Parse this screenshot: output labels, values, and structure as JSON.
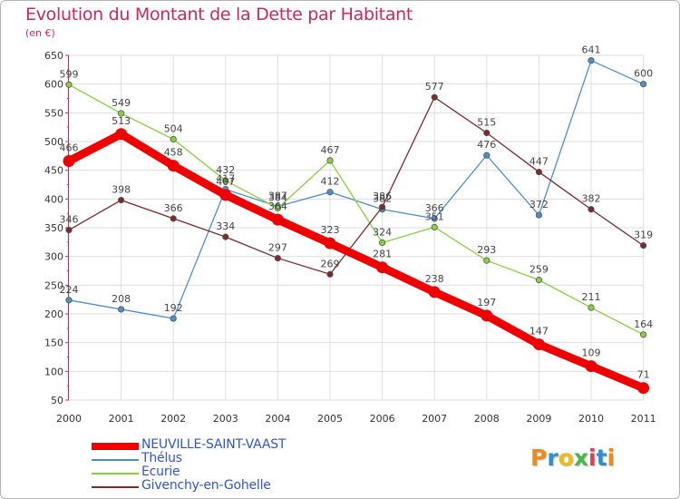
{
  "chart_data": {
    "type": "line",
    "title": "Evolution du Montant de la Dette par Habitant",
    "unit": "(en €)",
    "categories": [
      "2000",
      "2001",
      "2002",
      "2003",
      "2004",
      "2005",
      "2006",
      "2007",
      "2008",
      "2009",
      "2010",
      "2011"
    ],
    "ylim": [
      50,
      650
    ],
    "yticks": [
      50,
      100,
      150,
      200,
      250,
      300,
      350,
      400,
      450,
      500,
      550,
      600,
      650
    ],
    "series": [
      {
        "name": "Thélus",
        "color": "#4f8ec8",
        "values": [
          224,
          208,
          192,
          417,
          387,
          412,
          382,
          366,
          476,
          372,
          641,
          600
        ]
      },
      {
        "name": "Ecurie",
        "color": "#88d040",
        "values": [
          599,
          549,
          504,
          432,
          384,
          467,
          324,
          351,
          293,
          259,
          211,
          164
        ]
      },
      {
        "name": "Givenchy-en-Gohelle",
        "color": "#7a2b2b",
        "values": [
          346,
          398,
          366,
          334,
          297,
          269,
          386,
          577,
          515,
          447,
          382,
          319
        ]
      },
      {
        "name": "NEUVILLE-SAINT-VAAST",
        "color": "#ee0000",
        "highlight": true,
        "values": [
          466,
          513,
          458,
          407,
          364,
          323,
          281,
          238,
          197,
          147,
          109,
          71
        ]
      }
    ],
    "legend": [
      "NEUVILLE-SAINT-VAAST",
      "Thélus",
      "Ecurie",
      "Givenchy-en-Gohelle"
    ]
  },
  "logo": {
    "letters": [
      "P",
      "r",
      "o",
      "x",
      "i",
      "t",
      "i"
    ],
    "colors": [
      "#f08a1c",
      "#2d8fd8",
      "#f4b81a",
      "#49b848",
      "#e23e52",
      "#2d8fd8",
      "#f08a1c"
    ]
  }
}
